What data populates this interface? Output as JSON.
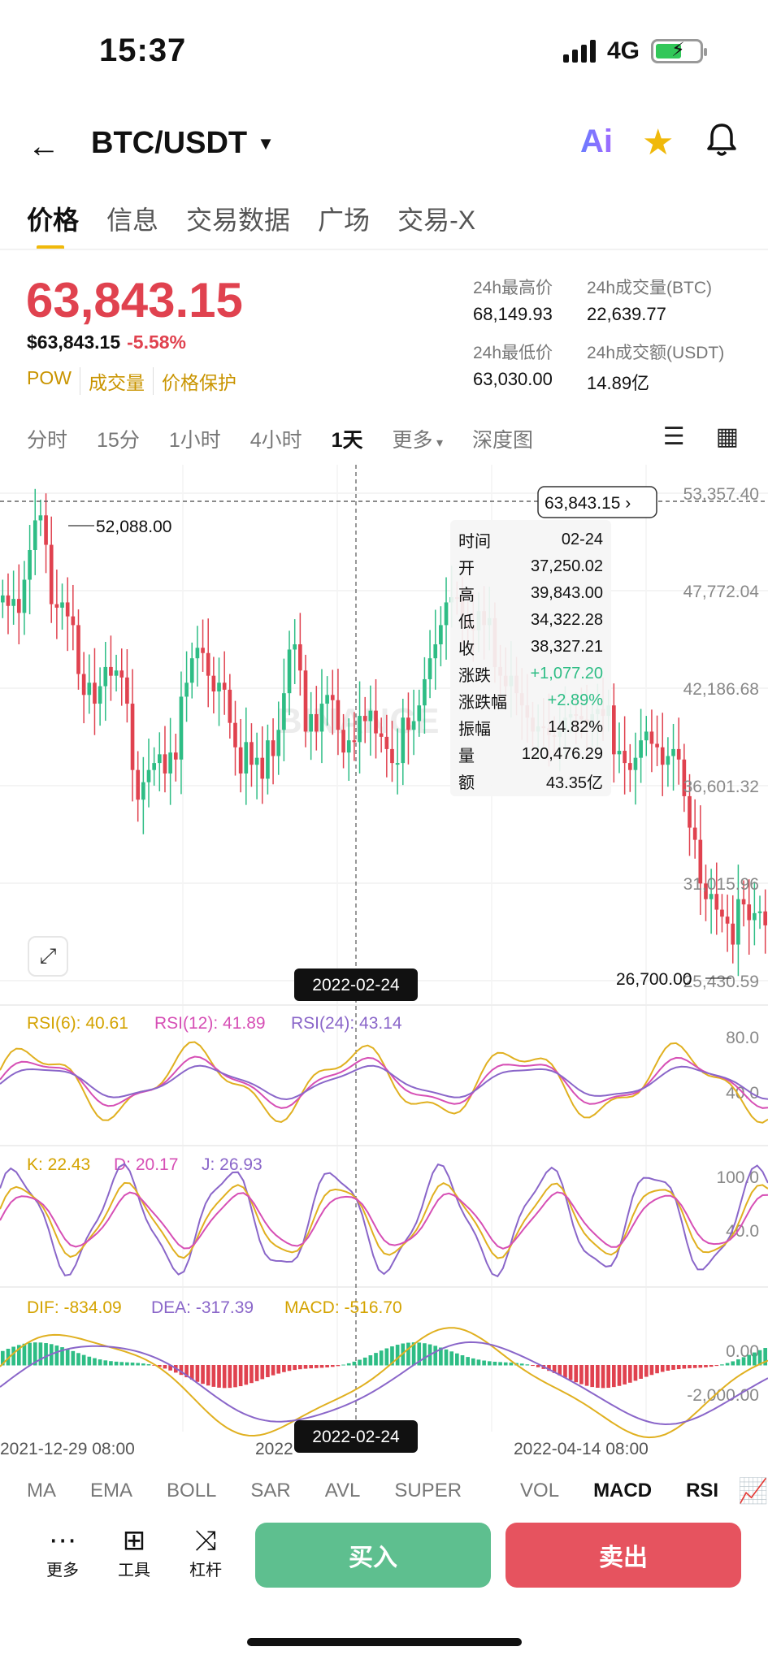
{
  "status_bar": {
    "time": "15:37",
    "network": "4G"
  },
  "header": {
    "pair": "BTC/USDT",
    "ai_label": "Ai"
  },
  "tabs": [
    "价格",
    "信息",
    "交易数据",
    "广场",
    "交易-X"
  ],
  "price": {
    "last": "63,843.15",
    "usd": "$63,843.15",
    "change_pct": "-5.58%",
    "tags": [
      "POW",
      "成交量",
      "价格保护"
    ]
  },
  "stats": {
    "high_label": "24h最高价",
    "high": "68,149.93",
    "vol_btc_label": "24h成交量(BTC)",
    "vol_btc": "22,639.77",
    "low_label": "24h最低价",
    "low": "63,030.00",
    "vol_usdt_label": "24h成交额(USDT)",
    "vol_usdt": "14.89亿"
  },
  "intervals": {
    "items": [
      "分时",
      "15分",
      "1小时",
      "4小时",
      "1天",
      "更多"
    ],
    "active": "1天",
    "depth": "深度图"
  },
  "chart_data": {
    "type": "candlestick",
    "y_ticks": [
      "53,357.40",
      "47,772.04",
      "42,186.68",
      "36,601.32",
      "31,015.96",
      "25,430.59"
    ],
    "y_tick_values": [
      53357.4,
      47772.04,
      42186.68,
      36601.32,
      31015.96,
      25430.59
    ],
    "ylim": [
      25430.59,
      53357.4
    ],
    "current_price_label": "63,843.15",
    "max_label": "52,088.00",
    "min_label": "26,700.00",
    "crosshair_date": "2022-02-24",
    "x_labels": [
      "2021-12-29 08:00",
      "2022",
      "2022-04-14 08:00"
    ],
    "watermark": "BINANCE",
    "tooltip": [
      {
        "k": "时间",
        "v": "02-24"
      },
      {
        "k": "开",
        "v": "37,250.02"
      },
      {
        "k": "高",
        "v": "39,843.00"
      },
      {
        "k": "低",
        "v": "34,322.28"
      },
      {
        "k": "收",
        "v": "38,327.21"
      },
      {
        "k": "涨跌",
        "v": "+1,077.20"
      },
      {
        "k": "涨跌幅",
        "v": "+2.89%"
      },
      {
        "k": "振幅",
        "v": "14.82%"
      },
      {
        "k": "量",
        "v": "120,476.29"
      },
      {
        "k": "额",
        "v": "43.35亿"
      }
    ],
    "closes": [
      47500,
      46900,
      47300,
      46500,
      48400,
      50100,
      51800,
      52088,
      50400,
      47000,
      46800,
      47100,
      46300,
      45800,
      43000,
      41800,
      42500,
      41300,
      42300,
      43400,
      42900,
      43200,
      42800,
      41300,
      37500,
      35800,
      36800,
      37500,
      37900,
      38400,
      37300,
      38500,
      38100,
      41700,
      42500,
      43900,
      44500,
      44200,
      42900,
      42000,
      42500,
      42100,
      40200,
      38800,
      37300,
      39100,
      37800,
      38200,
      37000,
      39200,
      38300,
      39800,
      41900,
      44400,
      44700,
      43200,
      39700,
      40700,
      39700,
      41300,
      41800,
      41500,
      39800,
      38500,
      39200,
      39100,
      40600,
      40300,
      40900,
      39600,
      39400,
      38700,
      37900,
      37900,
      40500,
      39800,
      40300,
      41200,
      42700,
      43900,
      44700,
      45800,
      47100,
      47400,
      47300,
      46300,
      45700,
      45500,
      46600,
      45800,
      46200,
      43400,
      42900,
      42300,
      42900,
      41900,
      41200,
      40500,
      39700,
      40000,
      39900,
      39500,
      39400,
      39700,
      40500,
      40700,
      40600,
      40400,
      40100,
      40700,
      41000,
      40600,
      41200,
      38400,
      38600,
      37900,
      37500,
      38200,
      39200,
      39700,
      39000,
      38800,
      37800,
      38300,
      38700,
      38100,
      36000,
      34200,
      33500,
      31000,
      30100,
      30400,
      29500,
      29100,
      28700,
      27500,
      30100,
      29800,
      28900,
      29300,
      29400,
      28600
    ]
  },
  "rsi": {
    "label6": "RSI(6): 40.61",
    "label12": "RSI(12): 41.89",
    "label24": "RSI(24): 43.14",
    "ticks": [
      "80.0",
      "40.0"
    ]
  },
  "kdj": {
    "k": "K: 22.43",
    "d": "D: 20.17",
    "j": "J: 26.93",
    "ticks": [
      "100.0",
      "40.0"
    ]
  },
  "macd": {
    "dif": "DIF: -834.09",
    "dea": "DEA: -317.39",
    "macd": "MACD: -516.70",
    "ticks": [
      "0.00",
      "-2,000.00"
    ]
  },
  "indicator_tabs": {
    "items": [
      "MA",
      "EMA",
      "BOLL",
      "SAR",
      "AVL",
      "SUPER",
      "VOL",
      "MACD",
      "RSI"
    ],
    "active": [
      "MACD",
      "RSI"
    ]
  },
  "bottom": {
    "more": "更多",
    "tools": "工具",
    "leverage": "杠杆",
    "buy": "买入",
    "sell": "卖出"
  },
  "colors": {
    "up": "#2ebd85",
    "down": "#e0424f",
    "accent": "#f0b90b"
  }
}
